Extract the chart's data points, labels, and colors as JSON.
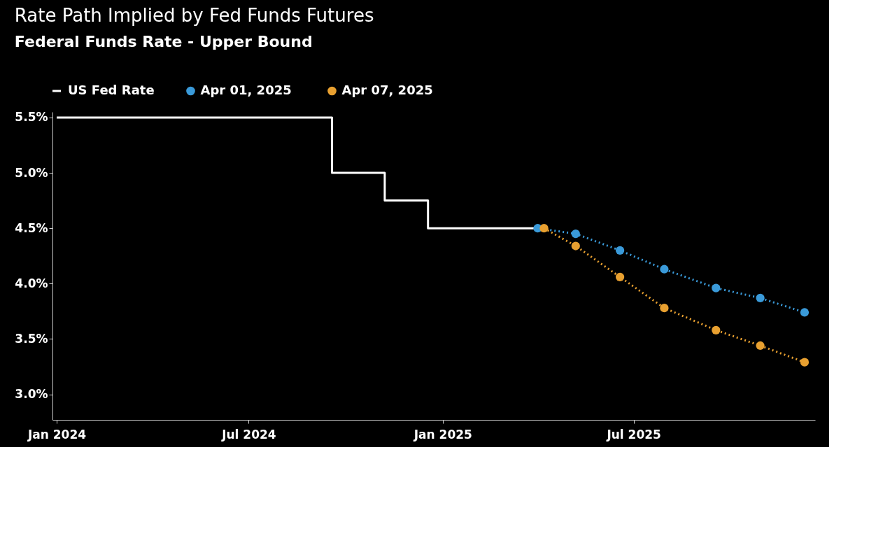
{
  "chart_data": {
    "type": "line",
    "title": "Rate Path Implied by Fed Funds Futures",
    "subtitle": "Federal Funds Rate - Upper Bound",
    "series": [
      {
        "name": "US Fed Rate",
        "type": "step",
        "color": "#ffffff",
        "line_style": "solid",
        "marker": "none",
        "x": [
          "2024-01-01",
          "2024-09-18",
          "2024-11-07",
          "2024-12-18",
          "2025-04-01"
        ],
        "values": [
          5.5,
          5.0,
          4.75,
          4.5,
          4.5
        ]
      },
      {
        "name": "Apr 01, 2025",
        "color": "#3a9ad9",
        "line_style": "dotted",
        "marker": "circle",
        "x": [
          "2025-04-01",
          "2025-05-07",
          "2025-06-18",
          "2025-07-30",
          "2025-09-17",
          "2025-10-29",
          "2025-12-10"
        ],
        "values": [
          4.5,
          4.45,
          4.3,
          4.13,
          3.96,
          3.87,
          3.74
        ]
      },
      {
        "name": "Apr 07, 2025",
        "color": "#e8a030",
        "line_style": "dotted",
        "marker": "circle",
        "x": [
          "2025-04-07",
          "2025-05-07",
          "2025-06-18",
          "2025-07-30",
          "2025-09-17",
          "2025-10-29",
          "2025-12-10"
        ],
        "values": [
          4.5,
          4.34,
          4.06,
          3.78,
          3.58,
          3.44,
          3.29
        ]
      }
    ],
    "xlim": [
      "2023-12-28",
      "2025-12-20"
    ],
    "xticks": [
      {
        "value": "2024-01-01",
        "label": "Jan 2024"
      },
      {
        "value": "2024-07-01",
        "label": "Jul 2024"
      },
      {
        "value": "2025-01-01",
        "label": "Jan 2025"
      },
      {
        "value": "2025-07-01",
        "label": "Jul 2025"
      }
    ],
    "ylim": [
      2.77,
      5.55
    ],
    "yticks": [
      {
        "value": 3.0,
        "label": "3.0%"
      },
      {
        "value": 3.5,
        "label": "3.5%"
      },
      {
        "value": 4.0,
        "label": "4.0%"
      },
      {
        "value": 4.5,
        "label": "4.5%"
      },
      {
        "value": 5.0,
        "label": "5.0%"
      },
      {
        "value": 5.5,
        "label": "5.5%"
      }
    ],
    "grid": false,
    "legend": "top left"
  }
}
